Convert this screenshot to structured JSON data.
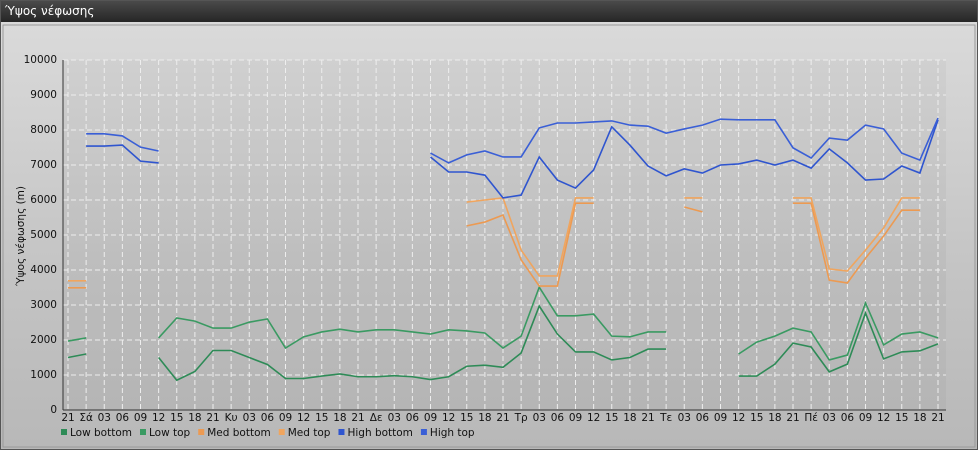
{
  "chart_data": {
    "type": "line",
    "title": "Ύψος νέφωσης",
    "y_label": "Ύψος νέφωσης (m)",
    "categories": [
      "21",
      "Σά",
      "03",
      "06",
      "09",
      "12",
      "15",
      "18",
      "21",
      "Κυ",
      "03",
      "06",
      "09",
      "12",
      "15",
      "18",
      "21",
      "Δε",
      "03",
      "06",
      "09",
      "12",
      "15",
      "18",
      "21",
      "Τρ",
      "03",
      "06",
      "09",
      "12",
      "15",
      "18",
      "21",
      "Τε",
      "03",
      "06",
      "09",
      "12",
      "15",
      "18",
      "21",
      "Πέ",
      "03",
      "06",
      "09",
      "12",
      "15",
      "18",
      "21"
    ],
    "ylim": [
      0,
      10000
    ],
    "yticks": [
      0,
      1000,
      2000,
      3000,
      4000,
      5000,
      6000,
      7000,
      8000,
      9000,
      10000
    ],
    "grid": true,
    "series": [
      {
        "name": "Low bottom",
        "color": "#2e8b57",
        "values": [
          1500,
          1600,
          null,
          null,
          null,
          1500,
          850,
          1100,
          1700,
          1700,
          1500,
          1300,
          900,
          900,
          970,
          1030,
          950,
          950,
          980,
          950,
          870,
          950,
          1250,
          1280,
          1220,
          1630,
          2970,
          2170,
          1660,
          1660,
          1430,
          1500,
          1740,
          1740,
          null,
          null,
          null,
          970,
          970,
          1310,
          1910,
          1800,
          1090,
          1310,
          2770,
          1460,
          1660,
          1690,
          1890
        ]
      },
      {
        "name": "Low top",
        "color": "#3a9a62",
        "values": [
          1970,
          2060,
          null,
          null,
          null,
          2060,
          2630,
          2540,
          2340,
          2340,
          2510,
          2600,
          1770,
          2090,
          2230,
          2310,
          2230,
          2290,
          2290,
          2230,
          2170,
          2290,
          2260,
          2200,
          1770,
          2110,
          3510,
          2690,
          2690,
          2740,
          2110,
          2090,
          2230,
          2230,
          null,
          null,
          null,
          1600,
          1940,
          2110,
          2340,
          2230,
          1430,
          1570,
          3060,
          1860,
          2170,
          2230,
          2060
        ]
      },
      {
        "name": "Med bottom",
        "color": "#ec9a52",
        "values": [
          3490,
          3490,
          null,
          null,
          null,
          null,
          null,
          null,
          null,
          null,
          null,
          null,
          null,
          null,
          null,
          null,
          null,
          null,
          null,
          null,
          null,
          null,
          5260,
          5370,
          5570,
          4290,
          3540,
          3540,
          5910,
          5910,
          null,
          null,
          null,
          null,
          5800,
          5660,
          null,
          null,
          null,
          null,
          5910,
          5910,
          3710,
          3630,
          4340,
          4970,
          5710,
          5710,
          null
        ]
      },
      {
        "name": "Med top",
        "color": "#f0a55e",
        "values": [
          3690,
          3690,
          null,
          null,
          null,
          null,
          null,
          null,
          null,
          null,
          null,
          null,
          null,
          null,
          null,
          null,
          null,
          null,
          null,
          null,
          null,
          null,
          5940,
          6000,
          6060,
          4570,
          3830,
          3830,
          6060,
          6060,
          null,
          null,
          null,
          null,
          6060,
          6060,
          null,
          null,
          null,
          null,
          6060,
          6060,
          4030,
          3970,
          4570,
          5200,
          6060,
          6060,
          null
        ]
      },
      {
        "name": "High bottom",
        "color": "#2f55cf",
        "values": [
          null,
          7540,
          7540,
          7570,
          7110,
          7060,
          null,
          null,
          null,
          null,
          null,
          null,
          null,
          null,
          null,
          null,
          null,
          null,
          null,
          null,
          7230,
          6800,
          6800,
          6710,
          6060,
          6140,
          7230,
          6570,
          6340,
          6860,
          8090,
          7570,
          6970,
          6690,
          6890,
          6770,
          7000,
          7030,
          7140,
          7000,
          7140,
          6910,
          7460,
          7060,
          6570,
          6600,
          6970,
          6770,
          8290
        ]
      },
      {
        "name": "High top",
        "color": "#3a5fd6",
        "values": [
          null,
          7890,
          7890,
          7830,
          7510,
          7400,
          null,
          null,
          null,
          null,
          null,
          null,
          null,
          null,
          null,
          null,
          null,
          null,
          null,
          null,
          7340,
          7060,
          7290,
          7400,
          7230,
          7230,
          8060,
          8200,
          8200,
          8230,
          8260,
          8140,
          8110,
          7910,
          8030,
          8140,
          8310,
          8290,
          8290,
          8290,
          7490,
          7200,
          7770,
          7710,
          8140,
          8030,
          7340,
          7140,
          8340
        ]
      }
    ]
  }
}
